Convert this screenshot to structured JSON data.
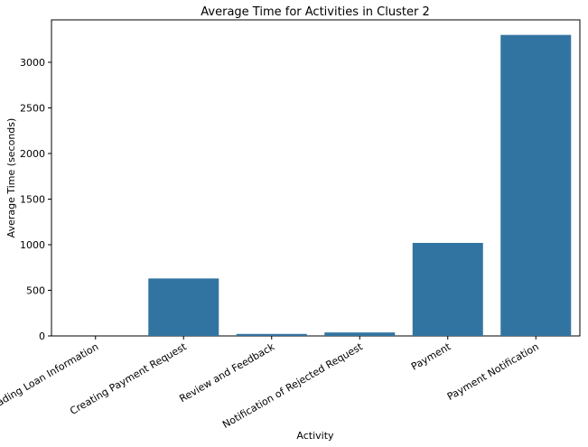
{
  "chart_data": {
    "type": "bar",
    "title": "Average Time for Activities in Cluster 2",
    "xlabel": "Activity",
    "ylabel": "Average Time (seconds)",
    "categories": [
      "Reading Loan Information",
      "Creating Payment Request",
      "Review and Feedback",
      "Notification of Rejected Request",
      "Payment",
      "Payment Notification"
    ],
    "values": [
      0,
      630,
      22,
      38,
      1020,
      3300
    ],
    "ylim": [
      0,
      3465
    ],
    "yticks": [
      0,
      500,
      1000,
      1500,
      2000,
      2500,
      3000
    ],
    "bar_color": "#3274a1",
    "grid": false
  }
}
